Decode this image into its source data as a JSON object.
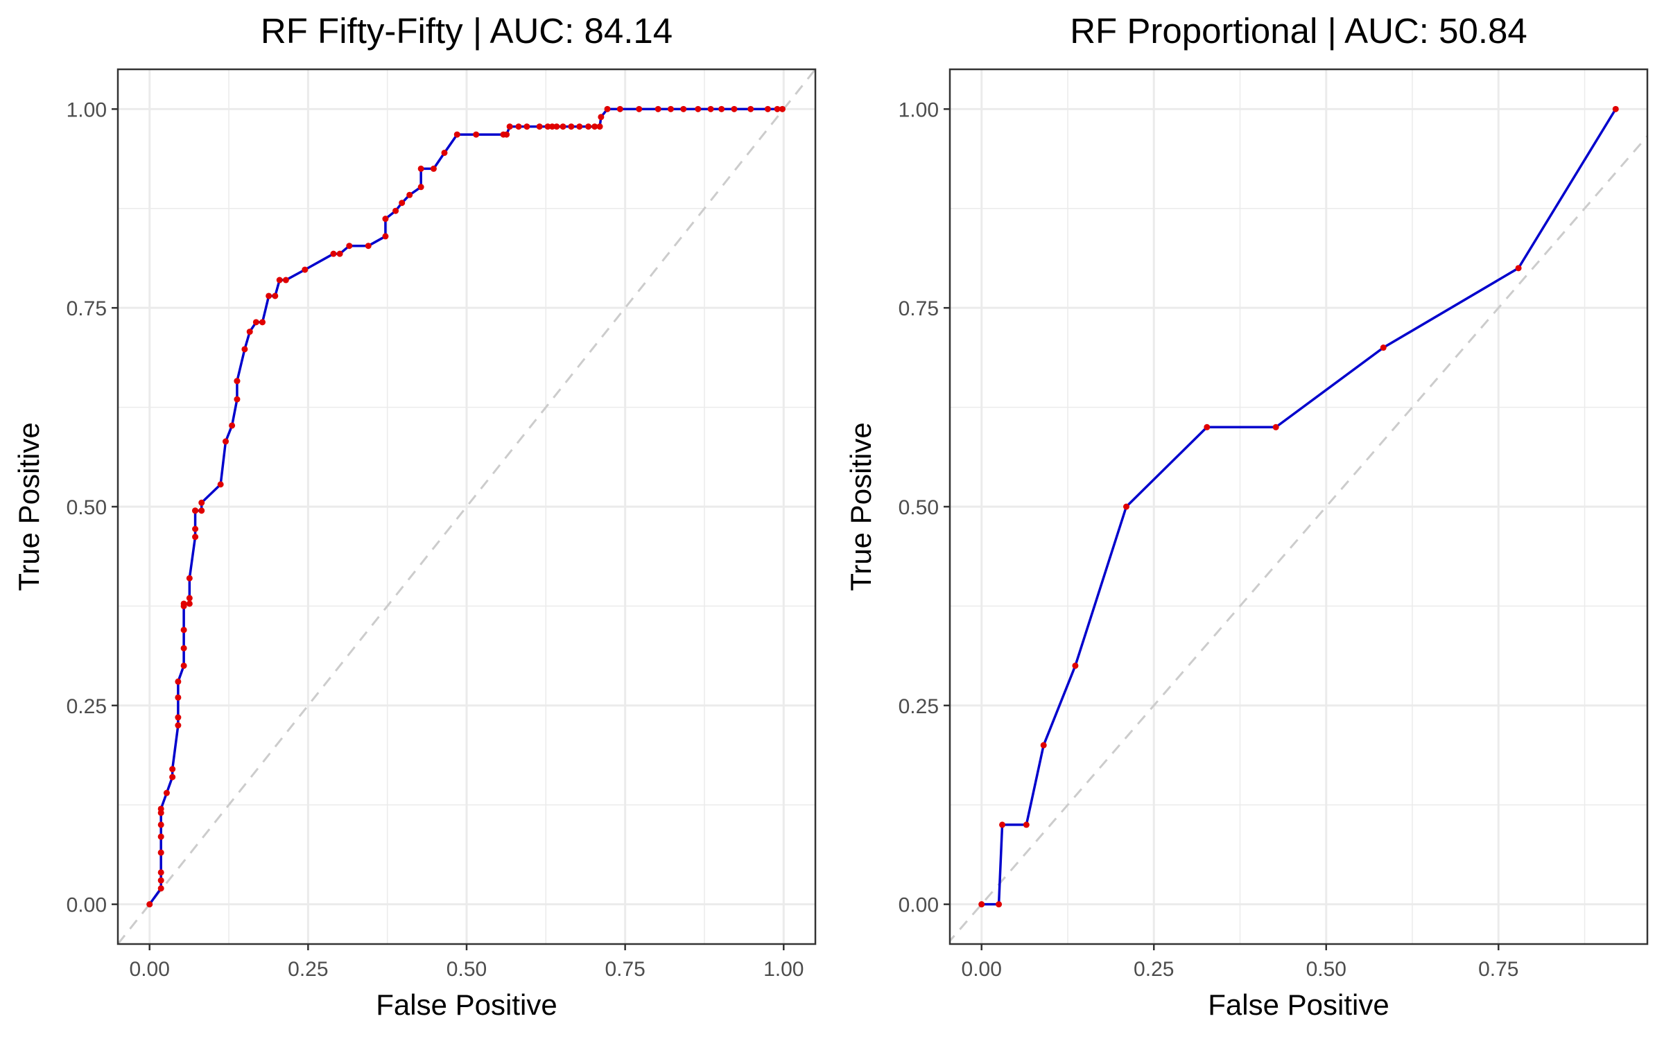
{
  "style": {
    "line_color": "#0000cc",
    "point_color": "#e00000",
    "diagonal_color": "#cccccc",
    "grid_color": "#ebebeb",
    "panel_border": "#333333"
  },
  "chart_data": [
    {
      "type": "line",
      "title": "RF Fifty-Fifty | AUC: 84.14",
      "xlabel": "False Positive",
      "ylabel": "True Positive",
      "xlim": [
        -0.05,
        1.05
      ],
      "ylim": [
        -0.05,
        1.05
      ],
      "xticks": [
        0.0,
        0.25,
        0.5,
        0.75,
        1.0
      ],
      "xtick_labels": [
        "0.00",
        "0.25",
        "0.50",
        "0.75",
        "1.00"
      ],
      "yticks": [
        0.0,
        0.25,
        0.5,
        0.75,
        1.0
      ],
      "ytick_labels": [
        "0.00",
        "0.25",
        "0.50",
        "0.75",
        "1.00"
      ],
      "grid": true,
      "reference_line": "diagonal",
      "series": [
        {
          "x": [
            0.0,
            0.018,
            0.018,
            0.018,
            0.018,
            0.018,
            0.018,
            0.018,
            0.018,
            0.027,
            0.036,
            0.036,
            0.045,
            0.045,
            0.045,
            0.045,
            0.054,
            0.054,
            0.054,
            0.054,
            0.054,
            0.063,
            0.063,
            0.063,
            0.072,
            0.072,
            0.072,
            0.072,
            0.082,
            0.082,
            0.112,
            0.12,
            0.13,
            0.138,
            0.138,
            0.138,
            0.15,
            0.158,
            0.168,
            0.178,
            0.188,
            0.198,
            0.205,
            0.215,
            0.245,
            0.29,
            0.3,
            0.315,
            0.345,
            0.372,
            0.372,
            0.388,
            0.398,
            0.41,
            0.428,
            0.428,
            0.448,
            0.465,
            0.485,
            0.515,
            0.558,
            0.563,
            0.568,
            0.582,
            0.595,
            0.615,
            0.628,
            0.635,
            0.642,
            0.652,
            0.665,
            0.678,
            0.692,
            0.702,
            0.71,
            0.712,
            0.722,
            0.742,
            0.772,
            0.802,
            0.822,
            0.842,
            0.865,
            0.885,
            0.902,
            0.922,
            0.948,
            0.975,
            0.99,
            0.998
          ],
          "y": [
            0.0,
            0.02,
            0.03,
            0.04,
            0.065,
            0.085,
            0.1,
            0.115,
            0.12,
            0.14,
            0.16,
            0.17,
            0.225,
            0.235,
            0.26,
            0.28,
            0.3,
            0.322,
            0.345,
            0.375,
            0.378,
            0.378,
            0.385,
            0.41,
            0.462,
            0.472,
            0.495,
            0.495,
            0.495,
            0.505,
            0.528,
            0.582,
            0.602,
            0.635,
            0.658,
            0.658,
            0.698,
            0.72,
            0.732,
            0.732,
            0.765,
            0.765,
            0.785,
            0.785,
            0.798,
            0.818,
            0.818,
            0.828,
            0.828,
            0.84,
            0.862,
            0.872,
            0.882,
            0.892,
            0.902,
            0.925,
            0.925,
            0.945,
            0.968,
            0.968,
            0.968,
            0.968,
            0.978,
            0.978,
            0.978,
            0.978,
            0.978,
            0.978,
            0.978,
            0.978,
            0.978,
            0.978,
            0.978,
            0.978,
            0.978,
            0.99,
            1.0,
            1.0,
            1.0,
            1.0,
            1.0,
            1.0,
            1.0,
            1.0,
            1.0,
            1.0,
            1.0,
            1.0,
            1.0,
            1.0
          ]
        }
      ]
    },
    {
      "type": "line",
      "title": "RF Proportional | AUC: 50.84",
      "xlabel": "False Positive",
      "ylabel": "True Positive",
      "xlim": [
        -0.046,
        0.966
      ],
      "ylim": [
        -0.05,
        1.05
      ],
      "xticks": [
        0.0,
        0.25,
        0.5,
        0.75
      ],
      "xtick_labels": [
        "0.00",
        "0.25",
        "0.50",
        "0.75"
      ],
      "yticks": [
        0.0,
        0.25,
        0.5,
        0.75,
        1.0
      ],
      "ytick_labels": [
        "0.00",
        "0.25",
        "0.50",
        "0.75",
        "1.00"
      ],
      "grid": true,
      "reference_line": "diagonal",
      "series": [
        {
          "x": [
            0.0,
            0.025,
            0.03,
            0.065,
            0.09,
            0.136,
            0.21,
            0.327,
            0.427,
            0.583,
            0.779,
            0.92
          ],
          "y": [
            0.0,
            0.0,
            0.1,
            0.1,
            0.2,
            0.3,
            0.5,
            0.6,
            0.6,
            0.7,
            0.8,
            1.0
          ]
        }
      ]
    }
  ]
}
